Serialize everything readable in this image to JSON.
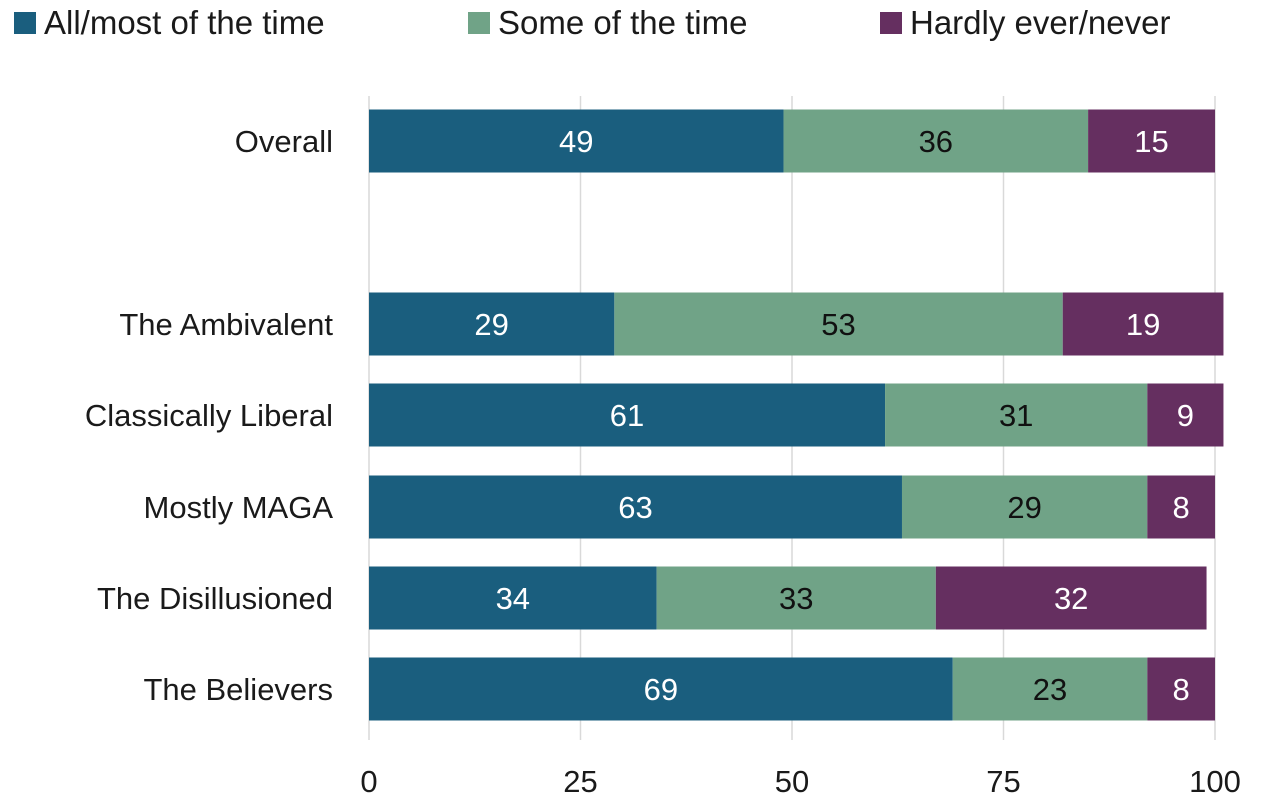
{
  "legend": [
    {
      "label": "All/most of the time",
      "color": "#1a5e7e"
    },
    {
      "label": "Some of the time",
      "color": "#70a387"
    },
    {
      "label": "Hardly ever/never",
      "color": "#652f60"
    }
  ],
  "chart_data": {
    "type": "bar",
    "orientation": "horizontal",
    "stacked": true,
    "categories": [
      "Overall",
      "The Ambivalent",
      "Classically Liberal",
      "Mostly MAGA",
      "The Disillusioned",
      "The Believers"
    ],
    "series": [
      {
        "name": "All/most of the time",
        "color": "#1a5e7e",
        "label_color": "#ffffff",
        "values": [
          49,
          29,
          61,
          63,
          34,
          69
        ]
      },
      {
        "name": "Some of the time",
        "color": "#70a387",
        "label_color": "#111111",
        "values": [
          36,
          53,
          31,
          29,
          33,
          23
        ]
      },
      {
        "name": "Hardly ever/never",
        "color": "#652f60",
        "label_color": "#ffffff",
        "values": [
          15,
          19,
          9,
          8,
          32,
          8
        ]
      }
    ],
    "xlim": [
      0,
      100
    ],
    "xticks": [
      0,
      25,
      50,
      75,
      100
    ],
    "grid": true,
    "legend_position": "top"
  }
}
